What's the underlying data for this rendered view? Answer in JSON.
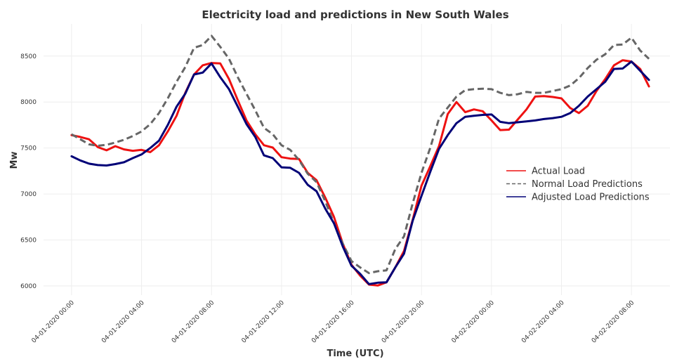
{
  "chart_data": {
    "type": "line",
    "title": "Electricity load and predictions in New South Wales",
    "xlabel": "Time (UTC)",
    "ylabel": "Mw",
    "ylim": [
      5900,
      8850
    ],
    "xlim": [
      -1.6,
      34.2
    ],
    "yticks": [
      6000,
      6500,
      7000,
      7500,
      8000,
      8500
    ],
    "xticks": [
      {
        "x": 0,
        "label": "04-01-2020 00:00"
      },
      {
        "x": 4,
        "label": "04-01-2020 04:00"
      },
      {
        "x": 8,
        "label": "04-01-2020 08:00"
      },
      {
        "x": 12,
        "label": "04-01-2020 12:00"
      },
      {
        "x": 16,
        "label": "04-01-2020 16:00"
      },
      {
        "x": 20,
        "label": "04-01-2020 20:00"
      },
      {
        "x": 24,
        "label": "04-02-2020 00:00"
      },
      {
        "x": 28,
        "label": "04-02-2020 04:00"
      },
      {
        "x": 32,
        "label": "04-02-2020 08:00"
      }
    ],
    "legend_position": "right",
    "series": [
      {
        "name": "Actual Load",
        "color": "#ee1111",
        "style": "solid",
        "values": [
          [
            0,
            7640
          ],
          [
            0.5,
            7620
          ],
          [
            1,
            7595
          ],
          [
            1.5,
            7510
          ],
          [
            2,
            7475
          ],
          [
            2.5,
            7520
          ],
          [
            3,
            7485
          ],
          [
            3.5,
            7470
          ],
          [
            4,
            7480
          ],
          [
            4.5,
            7455
          ],
          [
            5,
            7530
          ],
          [
            5.5,
            7680
          ],
          [
            6,
            7850
          ],
          [
            6.5,
            8100
          ],
          [
            7,
            8300
          ],
          [
            7.5,
            8400
          ],
          [
            8,
            8425
          ],
          [
            8.5,
            8420
          ],
          [
            9,
            8250
          ],
          [
            9.5,
            8020
          ],
          [
            10,
            7800
          ],
          [
            10.5,
            7650
          ],
          [
            11,
            7530
          ],
          [
            11.5,
            7505
          ],
          [
            12,
            7400
          ],
          [
            12.5,
            7385
          ],
          [
            13,
            7380
          ],
          [
            13.5,
            7230
          ],
          [
            14,
            7150
          ],
          [
            14.5,
            6960
          ],
          [
            15,
            6750
          ],
          [
            15.5,
            6460
          ],
          [
            16,
            6230
          ],
          [
            16.5,
            6110
          ],
          [
            17,
            6015
          ],
          [
            17.5,
            6005
          ],
          [
            18,
            6040
          ],
          [
            18.5,
            6200
          ],
          [
            19,
            6380
          ],
          [
            19.5,
            6720
          ],
          [
            20,
            7090
          ],
          [
            20.5,
            7300
          ],
          [
            21,
            7520
          ],
          [
            21.5,
            7870
          ],
          [
            22,
            8000
          ],
          [
            22.5,
            7890
          ],
          [
            23,
            7920
          ],
          [
            23.5,
            7900
          ],
          [
            24,
            7800
          ],
          [
            24.5,
            7695
          ],
          [
            25,
            7700
          ],
          [
            25.5,
            7810
          ],
          [
            26,
            7920
          ],
          [
            26.5,
            8060
          ],
          [
            27,
            8065
          ],
          [
            27.5,
            8055
          ],
          [
            28,
            8040
          ],
          [
            28.5,
            7935
          ],
          [
            29,
            7880
          ],
          [
            29.5,
            7960
          ],
          [
            30,
            8120
          ],
          [
            30.5,
            8250
          ],
          [
            31,
            8400
          ],
          [
            31.5,
            8455
          ],
          [
            32,
            8440
          ],
          [
            32.5,
            8360
          ],
          [
            33,
            8170
          ]
        ]
      },
      {
        "name": "Normal Load Predictions",
        "color": "#666666",
        "style": "dashed",
        "values": [
          [
            0,
            7650
          ],
          [
            0.5,
            7595
          ],
          [
            1,
            7540
          ],
          [
            1.5,
            7525
          ],
          [
            2,
            7535
          ],
          [
            2.5,
            7560
          ],
          [
            3,
            7590
          ],
          [
            3.5,
            7630
          ],
          [
            4,
            7680
          ],
          [
            4.5,
            7760
          ],
          [
            5,
            7880
          ],
          [
            5.5,
            8040
          ],
          [
            6,
            8220
          ],
          [
            6.5,
            8380
          ],
          [
            7,
            8590
          ],
          [
            7.5,
            8620
          ],
          [
            8,
            8720
          ],
          [
            8.5,
            8600
          ],
          [
            9,
            8470
          ],
          [
            9.5,
            8270
          ],
          [
            10,
            8090
          ],
          [
            10.5,
            7910
          ],
          [
            11,
            7720
          ],
          [
            11.5,
            7650
          ],
          [
            12,
            7530
          ],
          [
            12.5,
            7480
          ],
          [
            13,
            7370
          ],
          [
            13.5,
            7220
          ],
          [
            14,
            7130
          ],
          [
            14.5,
            6920
          ],
          [
            15,
            6680
          ],
          [
            15.5,
            6460
          ],
          [
            16,
            6270
          ],
          [
            16.5,
            6200
          ],
          [
            17,
            6140
          ],
          [
            17.5,
            6160
          ],
          [
            18,
            6170
          ],
          [
            18.5,
            6400
          ],
          [
            19,
            6540
          ],
          [
            19.5,
            6900
          ],
          [
            20,
            7230
          ],
          [
            20.5,
            7500
          ],
          [
            21,
            7820
          ],
          [
            21.5,
            7940
          ],
          [
            22,
            8060
          ],
          [
            22.5,
            8130
          ],
          [
            23,
            8140
          ],
          [
            23.5,
            8145
          ],
          [
            24,
            8140
          ],
          [
            24.5,
            8100
          ],
          [
            25,
            8075
          ],
          [
            25.5,
            8085
          ],
          [
            26,
            8110
          ],
          [
            26.5,
            8100
          ],
          [
            27,
            8100
          ],
          [
            27.5,
            8120
          ],
          [
            28,
            8140
          ],
          [
            28.5,
            8180
          ],
          [
            29,
            8260
          ],
          [
            29.5,
            8370
          ],
          [
            30,
            8460
          ],
          [
            30.5,
            8520
          ],
          [
            31,
            8620
          ],
          [
            31.5,
            8625
          ],
          [
            32,
            8700
          ],
          [
            32.5,
            8560
          ],
          [
            33,
            8470
          ]
        ]
      },
      {
        "name": "Adjusted Load Predictions",
        "color": "#000077",
        "style": "solid",
        "values": [
          [
            0,
            7410
          ],
          [
            0.5,
            7365
          ],
          [
            1,
            7330
          ],
          [
            1.5,
            7315
          ],
          [
            2,
            7310
          ],
          [
            2.5,
            7325
          ],
          [
            3,
            7345
          ],
          [
            3.5,
            7390
          ],
          [
            4,
            7430
          ],
          [
            4.5,
            7500
          ],
          [
            5,
            7580
          ],
          [
            5.5,
            7750
          ],
          [
            6,
            7950
          ],
          [
            6.5,
            8090
          ],
          [
            7,
            8300
          ],
          [
            7.5,
            8320
          ],
          [
            8,
            8420
          ],
          [
            8.5,
            8270
          ],
          [
            9,
            8140
          ],
          [
            9.5,
            7950
          ],
          [
            10,
            7760
          ],
          [
            10.5,
            7620
          ],
          [
            11,
            7420
          ],
          [
            11.5,
            7390
          ],
          [
            12,
            7290
          ],
          [
            12.5,
            7285
          ],
          [
            13,
            7230
          ],
          [
            13.5,
            7100
          ],
          [
            14,
            7030
          ],
          [
            14.5,
            6840
          ],
          [
            15,
            6680
          ],
          [
            15.5,
            6430
          ],
          [
            16,
            6220
          ],
          [
            16.5,
            6130
          ],
          [
            17,
            6020
          ],
          [
            17.5,
            6035
          ],
          [
            18,
            6040
          ],
          [
            18.5,
            6200
          ],
          [
            19,
            6350
          ],
          [
            19.5,
            6710
          ],
          [
            20,
            6980
          ],
          [
            20.5,
            7240
          ],
          [
            21,
            7490
          ],
          [
            21.5,
            7640
          ],
          [
            22,
            7770
          ],
          [
            22.5,
            7840
          ],
          [
            23,
            7850
          ],
          [
            23.5,
            7860
          ],
          [
            24,
            7865
          ],
          [
            24.5,
            7785
          ],
          [
            25,
            7770
          ],
          [
            25.5,
            7780
          ],
          [
            26,
            7790
          ],
          [
            26.5,
            7800
          ],
          [
            27,
            7815
          ],
          [
            27.5,
            7825
          ],
          [
            28,
            7840
          ],
          [
            28.5,
            7880
          ],
          [
            29,
            7960
          ],
          [
            29.5,
            8060
          ],
          [
            30,
            8140
          ],
          [
            30.5,
            8220
          ],
          [
            31,
            8360
          ],
          [
            31.5,
            8365
          ],
          [
            32,
            8440
          ],
          [
            32.5,
            8340
          ],
          [
            33,
            8240
          ]
        ]
      }
    ]
  }
}
